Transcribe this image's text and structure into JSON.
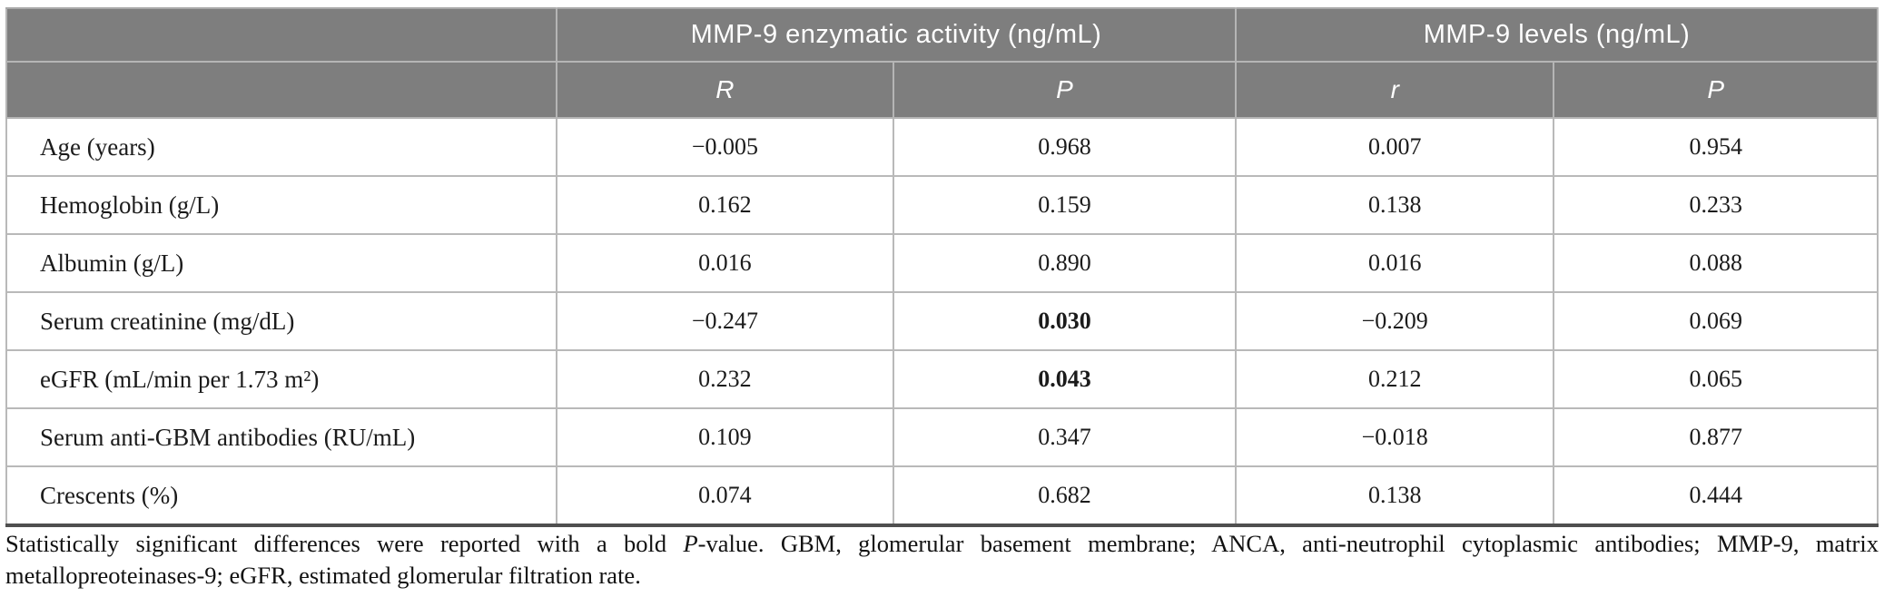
{
  "table": {
    "col_groups": [
      {
        "label": "MMP-9 enzymatic activity (ng/mL)"
      },
      {
        "label": "MMP-9 levels (ng/mL)"
      }
    ],
    "sub_headers": [
      "R",
      "P",
      "r",
      "P"
    ],
    "rows": [
      {
        "label": "Age (years)",
        "values": [
          "−0.005",
          "0.968",
          "0.007",
          "0.954"
        ],
        "p_bold": false
      },
      {
        "label": "Hemoglobin (g/L)",
        "values": [
          "0.162",
          "0.159",
          "0.138",
          "0.233"
        ],
        "p_bold": false
      },
      {
        "label": "Albumin (g/L)",
        "values": [
          "0.016",
          "0.890",
          "0.016",
          "0.088"
        ],
        "p_bold": false
      },
      {
        "label": "Serum creatinine (mg/dL)",
        "values": [
          "−0.247",
          "0.030",
          "−0.209",
          "0.069"
        ],
        "p_bold": true
      },
      {
        "label": "eGFR (mL/min per 1.73 m²)",
        "values": [
          "0.232",
          "0.043",
          "0.212",
          "0.065"
        ],
        "p_bold": true
      },
      {
        "label": "Serum anti-GBM antibodies (RU/mL)",
        "values": [
          "0.109",
          "0.347",
          "−0.018",
          "0.877"
        ],
        "p_bold": false
      },
      {
        "label": "Crescents (%)",
        "values": [
          "0.074",
          "0.682",
          "0.138",
          "0.444"
        ],
        "p_bold": false
      }
    ]
  },
  "footnote": {
    "part1": "Statistically significant differences were reported with a bold ",
    "italic_p": "P",
    "part2": "-value. GBM, glomerular basement membrane; ANCA, anti-neutrophil cytoplasmic antibodies; MMP-9, matrix metallopreoteinases-9; eGFR, estimated glomerular filtration rate."
  },
  "colors": {
    "header_bg": "#7e7e7e",
    "header_text": "#ffffff",
    "border_light": "#b9b9b9",
    "border_dark": "#4f4f4f",
    "body_text": "#1b1b1b"
  }
}
